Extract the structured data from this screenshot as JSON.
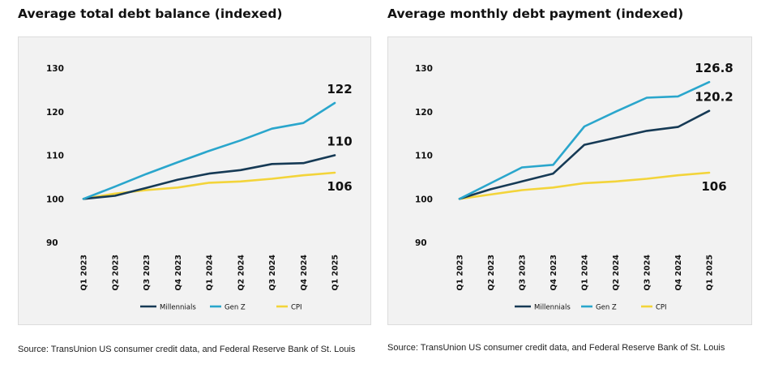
{
  "colors": {
    "millennials": "#163a55",
    "genz": "#2aa6cc",
    "cpi": "#f3d43a",
    "panel_bg": "#f2f2f2"
  },
  "left": {
    "title": "Average total debt balance (indexed)",
    "source": "Source: TransUnion US consumer credit data, and Federal Reserve Bank of St. Louis"
  },
  "right": {
    "title": "Average monthly debt payment (indexed)",
    "source": "Source: TransUnion US consumer credit data, and Federal Reserve Bank of St. Louis"
  },
  "chart_data": [
    {
      "type": "line",
      "title": "Average total debt balance (indexed)",
      "categories": [
        "Q1 2023",
        "Q2 2023",
        "Q3 2023",
        "Q4 2023",
        "Q1 2024",
        "Q2 2024",
        "Q3 2024",
        "Q4 2024",
        "Q1 2025"
      ],
      "yticks": [
        90,
        100,
        110,
        120,
        130
      ],
      "ylim": [
        90,
        130
      ],
      "legend_position": "bottom",
      "grid": false,
      "series": [
        {
          "name": "Millennials",
          "color_key": "millennials",
          "values": [
            100,
            100.7,
            102.5,
            104.4,
            105.8,
            106.6,
            108.0,
            108.2,
            110.0
          ]
        },
        {
          "name": "Gen Z",
          "color_key": "genz",
          "values": [
            100,
            102.8,
            105.7,
            108.4,
            111.0,
            113.4,
            116.1,
            117.4,
            122.0
          ]
        },
        {
          "name": "CPI",
          "color_key": "cpi",
          "values": [
            100,
            101.2,
            102.0,
            102.6,
            103.7,
            104.0,
            104.6,
            105.4,
            106.0
          ]
        }
      ],
      "end_labels": [
        {
          "series": "Gen Z",
          "text": "122"
        },
        {
          "series": "Millennials",
          "text": "110"
        },
        {
          "series": "CPI",
          "text": "106"
        }
      ]
    },
    {
      "type": "line",
      "title": "Average monthly debt payment (indexed)",
      "categories": [
        "Q1 2023",
        "Q2 2023",
        "Q3 2023",
        "Q4 2023",
        "Q1 2024",
        "Q2 2024",
        "Q3 2024",
        "Q4 2024",
        "Q1 2025"
      ],
      "yticks": [
        90,
        100,
        110,
        120,
        130
      ],
      "ylim": [
        90,
        130
      ],
      "legend_position": "bottom",
      "grid": false,
      "series": [
        {
          "name": "Millennials",
          "color_key": "millennials",
          "values": [
            100,
            102.2,
            104.0,
            105.8,
            112.4,
            114.0,
            115.6,
            116.5,
            120.2
          ]
        },
        {
          "name": "Gen Z",
          "color_key": "genz",
          "values": [
            100,
            103.6,
            107.2,
            107.8,
            116.6,
            120.0,
            123.2,
            123.5,
            126.8
          ]
        },
        {
          "name": "CPI",
          "color_key": "cpi",
          "values": [
            100,
            101.0,
            102.0,
            102.6,
            103.6,
            104.0,
            104.6,
            105.4,
            106.0
          ]
        }
      ],
      "end_labels": [
        {
          "series": "Gen Z",
          "text": "126.8"
        },
        {
          "series": "Millennials",
          "text": "120.2"
        },
        {
          "series": "CPI",
          "text": "106"
        }
      ]
    }
  ]
}
